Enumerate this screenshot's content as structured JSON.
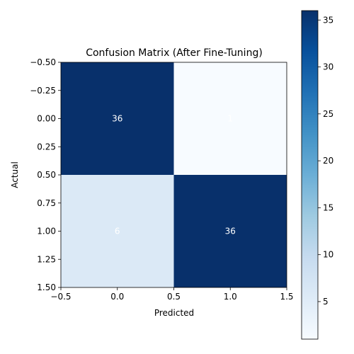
{
  "chart_data": {
    "type": "heatmap",
    "title": "Confusion Matrix (After Fine-Tuning)",
    "xlabel": "Predicted",
    "ylabel": "Actual",
    "matrix": [
      [
        36,
        1
      ],
      [
        6,
        36
      ]
    ],
    "cell_labels": [
      [
        "36",
        "1"
      ],
      [
        "6",
        "36"
      ]
    ],
    "xlim": [
      -0.5,
      1.5
    ],
    "ylim": [
      1.5,
      -0.5
    ],
    "x_ticks": [
      -0.5,
      0.0,
      0.5,
      1.0,
      1.5
    ],
    "x_tick_labels": [
      "−0.5",
      "0.0",
      "0.5",
      "1.0",
      "1.5"
    ],
    "y_ticks": [
      -0.5,
      -0.25,
      0.0,
      0.25,
      0.5,
      0.75,
      1.0,
      1.25,
      1.5
    ],
    "y_tick_labels": [
      "−0.50",
      "−0.25",
      "0.00",
      "0.25",
      "0.50",
      "0.75",
      "1.00",
      "1.25",
      "1.50"
    ],
    "colormap": "Blues",
    "color_range": [
      1,
      36
    ],
    "colorbar_ticks": [
      5,
      10,
      15,
      20,
      25,
      30,
      35
    ],
    "colorbar_tick_labels": [
      "5",
      "10",
      "15",
      "20",
      "25",
      "30",
      "35"
    ],
    "grid": false,
    "colors": {
      "cell_high": "#08306b",
      "cell_low": "#f7fbff",
      "text_on_dark": "#ffffff",
      "text_on_light": "#000000"
    }
  }
}
